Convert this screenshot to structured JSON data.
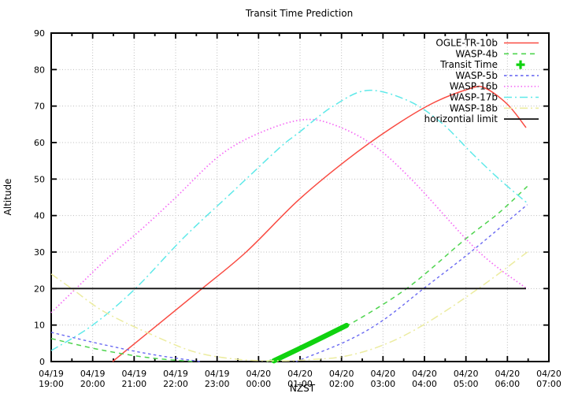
{
  "chart_data": {
    "type": "line",
    "title": "Transit Time Prediction",
    "xlabel": "NZST",
    "ylabel": "Altitude",
    "ylim": [
      0,
      90
    ],
    "xlim_hours": [
      0,
      12
    ],
    "x_unit": "hours after 04/19 19:00 NZST",
    "grid": true,
    "legend_position": "top-right-inside",
    "palette": {
      "background": "#ffffff",
      "grid": "#bcbcbc",
      "axis": "#000000"
    },
    "y_ticks": [
      0,
      10,
      20,
      30,
      40,
      50,
      60,
      70,
      80,
      90
    ],
    "x_ticks": [
      {
        "h": 0,
        "date": "04/19",
        "time": "19:00"
      },
      {
        "h": 1,
        "date": "04/19",
        "time": "20:00"
      },
      {
        "h": 2,
        "date": "04/19",
        "time": "21:00"
      },
      {
        "h": 3,
        "date": "04/19",
        "time": "22:00"
      },
      {
        "h": 4,
        "date": "04/19",
        "time": "23:00"
      },
      {
        "h": 5,
        "date": "04/20",
        "time": "00:00"
      },
      {
        "h": 6,
        "date": "04/20",
        "time": "01:00"
      },
      {
        "h": 7,
        "date": "04/20",
        "time": "02:00"
      },
      {
        "h": 8,
        "date": "04/20",
        "time": "03:00"
      },
      {
        "h": 9,
        "date": "04/20",
        "time": "04:00"
      },
      {
        "h": 10,
        "date": "04/20",
        "time": "05:00"
      },
      {
        "h": 11,
        "date": "04/20",
        "time": "06:00"
      },
      {
        "h": 12,
        "date": "04/20",
        "time": "07:00"
      }
    ],
    "series": [
      {
        "name": "OGLE-TR-10b",
        "color": "#f94b42",
        "style": "solid",
        "width": 1.5,
        "segments": [
          [
            [
              1.48,
              0
            ],
            [
              2.56,
              10
            ],
            [
              3.64,
              20
            ],
            [
              4.7,
              30
            ],
            [
              5.94,
              44
            ],
            [
              7.1,
              55
            ],
            [
              8.2,
              64
            ],
            [
              9.2,
              70.8
            ],
            [
              10.1,
              74.8
            ],
            [
              10.45,
              75
            ],
            [
              11.0,
              70.5
            ],
            [
              11.45,
              64.1
            ]
          ]
        ]
      },
      {
        "name": "WASP-4b",
        "color": "#4fd44f",
        "style": "dashed",
        "width": 1.5,
        "segments": [
          [
            [
              0,
              6.3
            ],
            [
              1.2,
              3.2
            ],
            [
              2.4,
              1.0
            ],
            [
              3.45,
              0
            ]
          ],
          [
            [
              5.2,
              0
            ],
            [
              6.2,
              4.5
            ],
            [
              7.12,
              9.7
            ],
            [
              8.57,
              20
            ],
            [
              9.96,
              33.3
            ],
            [
              10.8,
              40.8
            ],
            [
              11.48,
              48
            ]
          ]
        ]
      },
      {
        "name": "Transit Time",
        "color": "#0fd20f",
        "style": "bold",
        "width": 6.5,
        "segments": [
          [
            [
              5.37,
              0.2
            ],
            [
              6.25,
              5.0
            ],
            [
              7.12,
              9.9
            ]
          ]
        ]
      },
      {
        "name": "WASP-5b",
        "color": "#6b6bf2",
        "style": "dashed-small",
        "width": 1.4,
        "segments": [
          [
            [
              0,
              8
            ],
            [
              1.2,
              4.8
            ],
            [
              2.4,
              2.0
            ],
            [
              3.6,
              0
            ]
          ],
          [
            [
              5.9,
              0
            ],
            [
              7.12,
              5.6
            ],
            [
              8.0,
              11.3
            ],
            [
              8.98,
              20
            ],
            [
              10.2,
              30.8
            ],
            [
              11.48,
              43
            ]
          ]
        ]
      },
      {
        "name": "WASP-16b",
        "color": "#f56bf5",
        "style": "dotted",
        "width": 1.7,
        "segments": [
          [
            [
              0,
              13.4
            ],
            [
              0.66,
              20.7
            ],
            [
              1.33,
              28
            ],
            [
              2.2,
              36.5
            ],
            [
              2.98,
              44.7
            ],
            [
              4.08,
              56.6
            ],
            [
              5.1,
              63
            ],
            [
              6.11,
              66.3
            ],
            [
              6.9,
              64.5
            ],
            [
              7.8,
              59
            ],
            [
              8.73,
              49.4
            ],
            [
              10.28,
              30.4
            ],
            [
              11.44,
              20.2
            ]
          ]
        ]
      },
      {
        "name": "WASP-17b",
        "color": "#5fe9e9",
        "style": "dashdot",
        "width": 1.5,
        "segments": [
          [
            [
              0,
              3
            ],
            [
              1.0,
              10
            ],
            [
              2.03,
              20
            ],
            [
              3.2,
              34
            ],
            [
              4.42,
              47
            ],
            [
              5.5,
              58.5
            ],
            [
              5.98,
              62.8
            ],
            [
              6.8,
              70
            ],
            [
              7.63,
              74.3
            ],
            [
              8.6,
              71.5
            ],
            [
              9.4,
              65.5
            ],
            [
              10.15,
              57
            ],
            [
              10.8,
              50
            ],
            [
              11.48,
              43.4
            ]
          ]
        ]
      },
      {
        "name": "WASP-18b",
        "color": "#ececa0",
        "style": "dashdot",
        "width": 1.5,
        "segments": [
          [
            [
              0,
              24
            ],
            [
              0.53,
              19.7
            ],
            [
              1.3,
              13.5
            ],
            [
              2.56,
              6.7
            ],
            [
              3.5,
              2.5
            ],
            [
              4.5,
              0.6
            ],
            [
              5.5,
              0.2
            ],
            [
              6.17,
              0.5
            ],
            [
              7.06,
              1.4
            ],
            [
              8.0,
              4.5
            ],
            [
              9.0,
              10.2
            ],
            [
              10.3,
              20
            ],
            [
              11.48,
              30
            ]
          ]
        ]
      },
      {
        "name": "horizontial limit",
        "color": "#111111",
        "style": "solid",
        "width": 1.8,
        "segments": [
          [
            [
              0,
              20
            ],
            [
              11.45,
              20
            ]
          ]
        ]
      }
    ]
  }
}
